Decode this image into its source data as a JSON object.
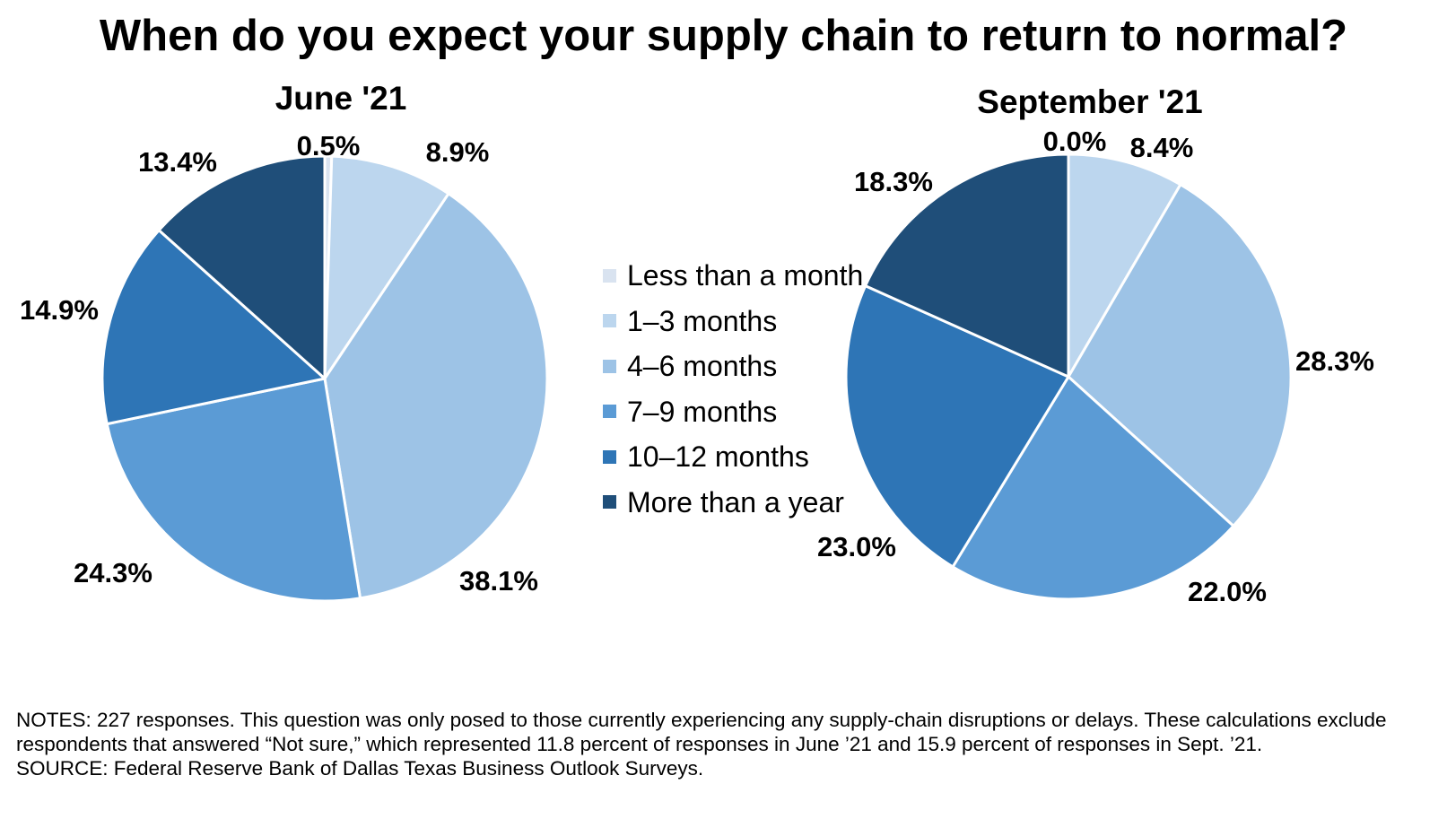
{
  "title": "When do you expect your supply chain to return to normal?",
  "legend": [
    {
      "label": "Less than a month",
      "color": "#d9e3f0"
    },
    {
      "label": "1–3 months",
      "color": "#bcd6ee"
    },
    {
      "label": "4–6 months",
      "color": "#9dc3e6"
    },
    {
      "label": "7–9 months",
      "color": "#5b9bd5"
    },
    {
      "label": "10–12 months",
      "color": "#2e75b6"
    },
    {
      "label": "More than a year",
      "color": "#1f4e79"
    }
  ],
  "chart_data": [
    {
      "type": "pie",
      "title": "June '21",
      "categories": [
        "Less than a month",
        "1–3 months",
        "4–6 months",
        "7–9 months",
        "10–12 months",
        "More than a year"
      ],
      "values": [
        0.5,
        8.9,
        38.1,
        24.3,
        14.9,
        13.4
      ],
      "labels": [
        "0.5%",
        "8.9%",
        "38.1%",
        "24.3%",
        "14.9%",
        "13.4%"
      ],
      "start": "top, clockwise"
    },
    {
      "type": "pie",
      "title": "September '21",
      "categories": [
        "Less than a month",
        "1–3 months",
        "4–6 months",
        "7–9 months",
        "10–12 months",
        "More than a year"
      ],
      "values": [
        0.0,
        8.4,
        28.3,
        22.0,
        23.0,
        18.3
      ],
      "labels": [
        "0.0%",
        "8.4%",
        "28.3%",
        "22.0%",
        "23.0%",
        "18.3%"
      ],
      "start": "top, clockwise"
    }
  ],
  "notes": [
    "NOTES: 227 responses. This question was only posed to those currently experiencing any supply-chain disruptions or delays. These calculations exclude respondents that answered “Not sure,” which represented 11.8 percent of responses in June ’21 and 15.9 percent of responses in Sept. ’21.",
    "SOURCE: Federal Reserve Bank of Dallas Texas Business Outlook Surveys."
  ]
}
